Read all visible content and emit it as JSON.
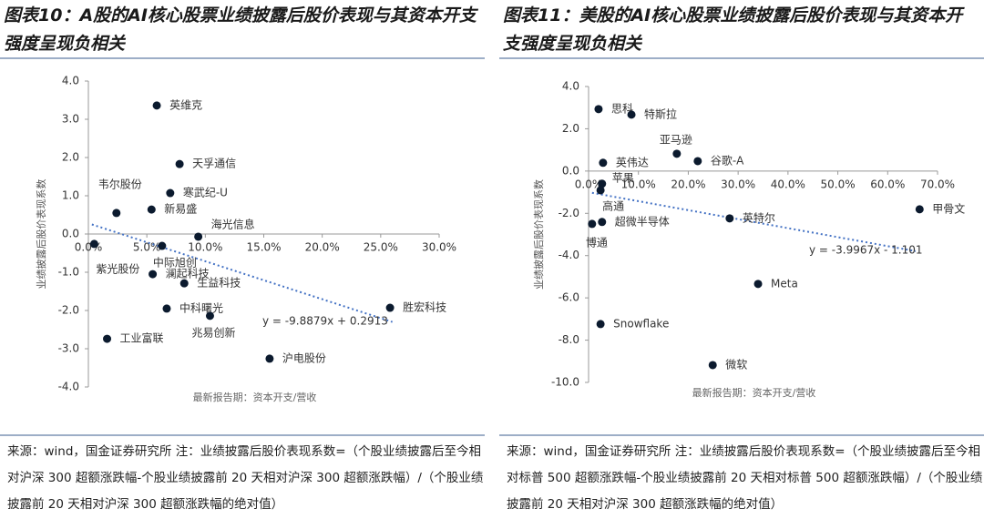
{
  "chart_data": [
    {
      "type": "scatter",
      "title": "图表10：A股的AI核心股票业绩披露后股价表现与其资本开支强度呈现负相关",
      "x_label": "最新报告期：资本开支/营收",
      "y_label": "业绩披露后股价表现系数",
      "point_labels": [
        "英维克",
        "天孚通信",
        "寒武纪-U",
        "韦尔股份",
        "新易盛",
        "海光信息",
        "紫光股份",
        "中际旭创",
        "澜起科技",
        "生益科技",
        "中科曙光",
        "兆易创新",
        "工业富联",
        "沪电股份",
        "胜宏科技"
      ],
      "x": [
        5.85,
        7.8,
        7.0,
        2.4,
        5.4,
        9.4,
        0.5,
        6.3,
        5.5,
        8.2,
        6.7,
        10.4,
        1.6,
        15.5,
        25.8
      ],
      "values": [
        3.36,
        1.83,
        1.07,
        0.55,
        0.64,
        -0.07,
        -0.26,
        -0.31,
        -1.05,
        -1.29,
        -1.95,
        -2.14,
        -2.74,
        -3.26,
        -1.93
      ],
      "color": "#0b1a2e",
      "trendline": {
        "x": [
          0.3,
          26.0
        ],
        "y": [
          0.25,
          -2.3
        ],
        "color": "#4472c4",
        "label": "y = -9.8879x + 0.2913"
      },
      "xlim": [
        0,
        30
      ],
      "xticks": [
        {
          "value": 0,
          "label": "0.0%"
        },
        {
          "value": 5,
          "label": "5.0%"
        },
        {
          "value": 10,
          "label": "10.0%"
        },
        {
          "value": 15,
          "label": "15.0%"
        },
        {
          "value": 20,
          "label": "20.0%"
        },
        {
          "value": 25,
          "label": "25.0%"
        },
        {
          "value": 30,
          "label": "30.0%"
        }
      ],
      "ylim": [
        -4,
        4
      ],
      "yticks": [
        {
          "value": 4,
          "label": "4.0"
        },
        {
          "value": 3,
          "label": "3.0"
        },
        {
          "value": 2,
          "label": "2.0"
        },
        {
          "value": 1,
          "label": "1.0"
        },
        {
          "value": 0,
          "label": "0.0"
        },
        {
          "value": -1,
          "label": "-1.0"
        },
        {
          "value": -2,
          "label": "-2.0"
        },
        {
          "value": -3,
          "label": "-3.0"
        },
        {
          "value": -4,
          "label": "-4.0"
        }
      ],
      "note": "来源：wind，国金证券研究所 注：业绩披露后股价表现系数=（个股业绩披露后至今相对沪深 300 超额涨跌幅-个股业绩披露前 20 天相对沪深 300 超额涨跌幅）/（个股业绩披露前 20 天相对沪深 300 超额涨跌幅的绝对值）"
    },
    {
      "type": "scatter",
      "title": "图表11：美股的AI核心股票业绩披露后股价表现与其资本开支强度呈现负相关",
      "x_label": "最新报告期：资本开支/营收",
      "y_label": "业绩披露后股价表现系数",
      "point_labels": [
        "思科",
        "特斯拉",
        "亚马逊",
        "谷歌-A",
        "英伟达",
        "苹果",
        "高通",
        "超微半导体",
        "博通",
        "英特尔",
        "甲骨文",
        "Meta",
        "Snowflake",
        "微软"
      ],
      "x": [
        2.0,
        8.6,
        17.7,
        21.9,
        2.9,
        2.7,
        2.4,
        2.7,
        0.7,
        28.3,
        66.4,
        34.0,
        2.4,
        24.9
      ],
      "values": [
        2.93,
        2.67,
        0.82,
        0.47,
        0.39,
        -0.6,
        -0.91,
        -2.41,
        -2.5,
        -2.24,
        -1.81,
        -5.34,
        -7.24,
        -9.18
      ],
      "color": "#0b1a2e",
      "trendline": {
        "x": [
          0.7,
          65.6
        ],
        "y": [
          -1.03,
          -3.79
        ],
        "color": "#4472c4",
        "label": "y = -3.9967x - 1.101"
      },
      "xlim": [
        0,
        70
      ],
      "xticks": [
        {
          "value": 0,
          "label": "0.0%"
        },
        {
          "value": 10,
          "label": "10.0%"
        },
        {
          "value": 20,
          "label": "20.0%"
        },
        {
          "value": 30,
          "label": "30.0%"
        },
        {
          "value": 40,
          "label": "40.0%"
        },
        {
          "value": 50,
          "label": "50.0%"
        },
        {
          "value": 60,
          "label": "60.0%"
        },
        {
          "value": 70,
          "label": "70.0%"
        }
      ],
      "ylim": [
        -10,
        4
      ],
      "yticks": [
        {
          "value": 4,
          "label": "4.0"
        },
        {
          "value": 2,
          "label": "2.0"
        },
        {
          "value": 0,
          "label": "0.0"
        },
        {
          "value": -2,
          "label": "-2.0"
        },
        {
          "value": -4,
          "label": "-4.0"
        },
        {
          "value": -6,
          "label": "-6.0"
        },
        {
          "value": -8,
          "label": "-8.0"
        },
        {
          "value": -10,
          "label": "-10.0"
        }
      ],
      "note": "来源：wind，国金证券研究所 注：业绩披露后股价表现系数=（个股业绩披露后至今相对标普 500 超额涨跌幅-个股业绩披露前 20 天相对标普 500 超额涨跌幅）/（个股业绩披露前 20 天相对沪深 300 超额涨跌幅的绝对值）"
    }
  ]
}
